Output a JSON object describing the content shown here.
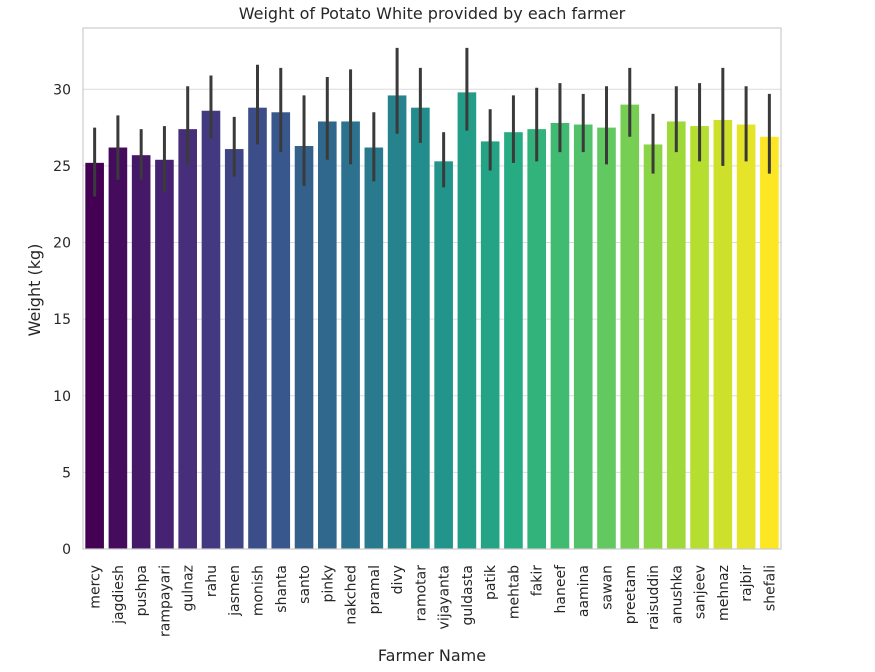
{
  "chart_data": {
    "type": "bar",
    "title": "Weight of Potato White provided by each farmer",
    "xlabel": "Farmer Name",
    "ylabel": "Weight (kg)",
    "ylim": [
      0,
      34
    ],
    "yticks": [
      0,
      5,
      10,
      15,
      20,
      25,
      30
    ],
    "grid": true,
    "palette": "viridis",
    "categories": [
      "mercy",
      "jagdiesh",
      "pushpa",
      "rampayari",
      "gulnaz",
      "rahu",
      "jasmen",
      "monish",
      "shanta",
      "santo",
      "pinky",
      "nakched",
      "pramal",
      "divy",
      "ramotar",
      "vijayanta",
      "guldasta",
      "patik",
      "mehtab",
      "fakir",
      "haneef",
      "aamina",
      "sawan",
      "preetam",
      "raisuddin",
      "anushka",
      "sanjeev",
      "mehnaz",
      "rajbir",
      "shefali"
    ],
    "values": [
      25.2,
      26.2,
      25.7,
      25.4,
      27.4,
      28.6,
      26.1,
      28.8,
      28.5,
      26.3,
      27.9,
      27.9,
      26.2,
      29.6,
      28.8,
      25.3,
      29.8,
      26.6,
      27.2,
      27.4,
      27.8,
      27.7,
      27.5,
      29.0,
      26.4,
      27.9,
      27.6,
      28.0,
      27.7,
      26.9
    ],
    "error_low": [
      23.0,
      24.1,
      24.1,
      23.3,
      25.1,
      26.8,
      24.3,
      26.4,
      25.9,
      23.7,
      25.4,
      25.1,
      24.0,
      27.1,
      26.5,
      23.6,
      27.3,
      24.7,
      25.2,
      25.3,
      25.9,
      25.9,
      25.1,
      26.9,
      24.5,
      25.9,
      25.3,
      25.0,
      25.3,
      24.5
    ],
    "error_high": [
      27.5,
      28.3,
      27.4,
      27.6,
      30.2,
      30.9,
      28.2,
      31.6,
      31.4,
      29.6,
      30.8,
      31.3,
      28.5,
      32.7,
      31.4,
      27.2,
      32.7,
      28.7,
      29.6,
      30.1,
      30.4,
      29.7,
      30.2,
      31.4,
      28.4,
      30.2,
      30.4,
      31.4,
      30.2,
      29.7
    ]
  }
}
